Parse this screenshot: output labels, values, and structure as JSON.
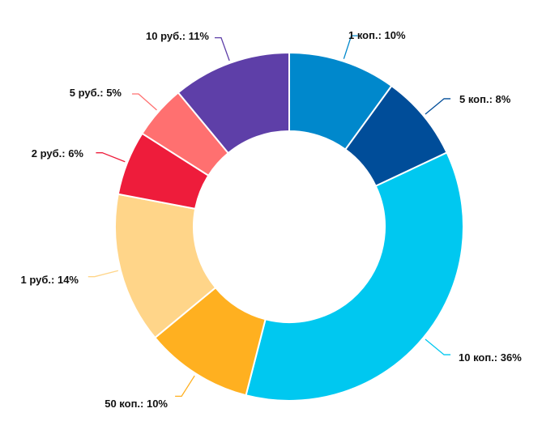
{
  "chart_data": {
    "type": "pie",
    "style": "donut",
    "title": "",
    "slices": [
      {
        "label": "1 коп.: 10%",
        "value": 10,
        "color": "#0088cc"
      },
      {
        "label": "5 коп.: 8%",
        "value": 8,
        "color": "#004d99"
      },
      {
        "label": "10 коп.: 36%",
        "value": 36,
        "color": "#00c8f0"
      },
      {
        "label": "50 коп.: 10%",
        "value": 10,
        "color": "#ffb020"
      },
      {
        "label": "1 руб.: 14%",
        "value": 14,
        "color": "#ffd589"
      },
      {
        "label": "2 руб.: 6%",
        "value": 6,
        "color": "#ee1c3b"
      },
      {
        "label": "5 руб.: 5%",
        "value": 5,
        "color": "#ff7070"
      },
      {
        "label": "10 руб.: 11%",
        "value": 11,
        "color": "#5e3fa8"
      }
    ]
  }
}
